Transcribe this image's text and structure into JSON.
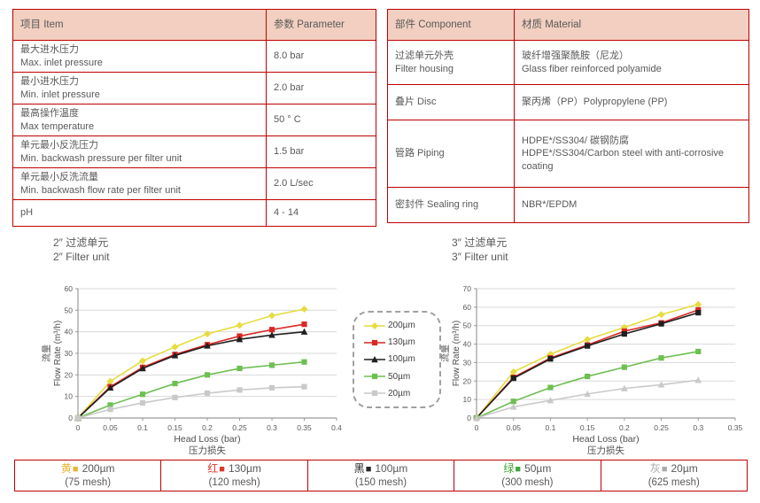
{
  "colors": {
    "table_border": "#c00000",
    "table_header_fill": "#f2cfc0",
    "body_text": "#595959",
    "grid_line": "#d9d9d9",
    "axis_line": "#9b9b9b"
  },
  "spec_table": {
    "headers": [
      "项目 Item",
      "参数 Parameter"
    ],
    "rows": [
      {
        "item": "最大进水压力\nMax. inlet pressure",
        "value": "8.0 bar"
      },
      {
        "item": "最小进水压力\nMin. inlet pressure",
        "value": "2.0 bar"
      },
      {
        "item": "最高操作温度\nMax temperature",
        "value": "50 ° C"
      },
      {
        "item": "单元最小反洗压力\nMin. backwash pressure per filter unit",
        "value": "1.5 bar"
      },
      {
        "item": "单元最小反洗流量\nMin. backwash flow rate per filter unit",
        "value": "2.0 L/sec"
      },
      {
        "item": "pH",
        "value": "4 - 14"
      }
    ]
  },
  "material_table": {
    "headers": [
      "部件 Component",
      "材质 Material"
    ],
    "rows": [
      {
        "component": "过滤单元外壳\nFilter housing",
        "material": "玻纤增强聚酰胺（尼龙）\nGlass fiber reinforced polyamide"
      },
      {
        "component": "叠片 Disc",
        "material": "聚丙烯（PP）Polypropylene (PP)"
      },
      {
        "component": "管路 Piping",
        "material": "HDPE*/SS304/ 碳钢防腐\nHDPE*/SS304/Carbon steel with anti-corrosive coating"
      },
      {
        "component": "密封件 Sealing ring",
        "material": "NBR*/EPDM"
      }
    ]
  },
  "chart_data": [
    {
      "type": "line",
      "title_zh": "2″ 过滤单元",
      "title_en": "2″ Filter unit",
      "ylabel_zh": "流量",
      "ylabel_en": "Flow Rate (m³/h)",
      "xlabel_en": "Head Loss (bar)",
      "xlabel_zh": "压力损失",
      "xlim": [
        0,
        0.4
      ],
      "ylim": [
        0,
        60
      ],
      "xticks": [
        0,
        0.05,
        0.1,
        0.15,
        0.2,
        0.25,
        0.3,
        0.35,
        0.4
      ],
      "xtick_labels": [
        "0",
        "0.05",
        "0.1",
        "0.15",
        "0.2",
        "0.25",
        "0.3",
        "0.35",
        "0.4"
      ],
      "yticks": [
        0,
        10,
        20,
        30,
        40,
        50,
        60
      ],
      "grid": true,
      "legend_position": "shared-middle",
      "x": [
        0,
        0.05,
        0.1,
        0.15,
        0.2,
        0.25,
        0.3,
        0.35
      ],
      "series": [
        {
          "name": "200µm",
          "color": "#e6dc40",
          "marker": "diamond",
          "values": [
            0,
            17,
            26.5,
            33,
            39,
            43,
            47.5,
            50.5
          ]
        },
        {
          "name": "130µm",
          "color": "#d92723",
          "marker": "square",
          "values": [
            0,
            14.5,
            23.5,
            29.5,
            34,
            38,
            41,
            43.5
          ]
        },
        {
          "name": "100µm",
          "color": "#211f1f",
          "marker": "triangle",
          "values": [
            0,
            14,
            23,
            29,
            33.5,
            36.5,
            38.5,
            40
          ]
        },
        {
          "name": "50µm",
          "color": "#6ebf52",
          "marker": "square",
          "values": [
            0,
            6,
            11,
            16,
            20,
            23,
            24.5,
            26
          ]
        },
        {
          "name": "20µm",
          "color": "#c9c9c9",
          "marker": "square",
          "values": [
            0,
            4,
            7,
            9.5,
            11.5,
            13,
            14,
            14.5
          ]
        }
      ]
    },
    {
      "type": "line",
      "title_zh": "3″ 过滤单元",
      "title_en": "3″ Filter unit",
      "ylabel_zh": "流量",
      "ylabel_en": "Flow Rate (m³/h)",
      "xlabel_en": "Head Loss (bar)",
      "xlabel_zh": "压力损失",
      "xlim": [
        0,
        0.35
      ],
      "ylim": [
        0,
        70
      ],
      "xticks": [
        0,
        0.05,
        0.1,
        0.15,
        0.2,
        0.25,
        0.3,
        0.35
      ],
      "xtick_labels": [
        "0",
        "0.05",
        "0.1",
        "0.15",
        "0.2",
        "0.25",
        "0.3",
        "0.35"
      ],
      "yticks": [
        0,
        10,
        20,
        30,
        40,
        50,
        60,
        70
      ],
      "grid": true,
      "legend_position": "shared-middle",
      "x": [
        0,
        0.05,
        0.1,
        0.15,
        0.2,
        0.25,
        0.3
      ],
      "series": [
        {
          "name": "200µm",
          "color": "#e6dc40",
          "marker": "diamond",
          "values": [
            0,
            25,
            34.5,
            42.5,
            49,
            56,
            61.5
          ]
        },
        {
          "name": "130µm",
          "color": "#d92723",
          "marker": "square",
          "values": [
            0,
            22,
            32.5,
            39.5,
            47,
            51.5,
            58.5
          ]
        },
        {
          "name": "100µm",
          "color": "#211f1f",
          "marker": "square",
          "values": [
            0,
            21.5,
            32,
            39,
            45.5,
            51,
            57
          ]
        },
        {
          "name": "50µm",
          "color": "#6ebf52",
          "marker": "square",
          "values": [
            0,
            9,
            16.5,
            22.5,
            27.5,
            32.5,
            36
          ]
        },
        {
          "name": "20µm",
          "color": "#c9c9c9",
          "marker": "triangle",
          "values": [
            0,
            6,
            9.5,
            13,
            16,
            18,
            20.5
          ]
        }
      ]
    }
  ],
  "legend": {
    "items": [
      {
        "label": "200µm",
        "color": "#e6dc40",
        "marker": "diamond"
      },
      {
        "label": "130µm",
        "color": "#d92723",
        "marker": "square"
      },
      {
        "label": "100µm",
        "color": "#211f1f",
        "marker": "triangle"
      },
      {
        "label": "50µm",
        "color": "#6ebf52",
        "marker": "square"
      },
      {
        "label": "20µm",
        "color": "#c9c9c9",
        "marker": "square"
      }
    ]
  },
  "footer_legend": {
    "swatch": "■",
    "items": [
      {
        "cn": "黄",
        "color": "#e9b237",
        "size": "200µm",
        "mesh": "(75 mesh)"
      },
      {
        "cn": "红",
        "color": "#e0352b",
        "size": "130µm",
        "mesh": "(120 mesh)"
      },
      {
        "cn": "黑",
        "color": "#262626",
        "size": "100µm",
        "mesh": "(150 mesh)"
      },
      {
        "cn": "绿",
        "color": "#46a63c",
        "size": "50µm",
        "mesh": "(300 mesh)"
      },
      {
        "cn": "灰",
        "color": "#a9a9a9",
        "size": "20µm",
        "mesh": "(625 mesh)"
      }
    ]
  }
}
